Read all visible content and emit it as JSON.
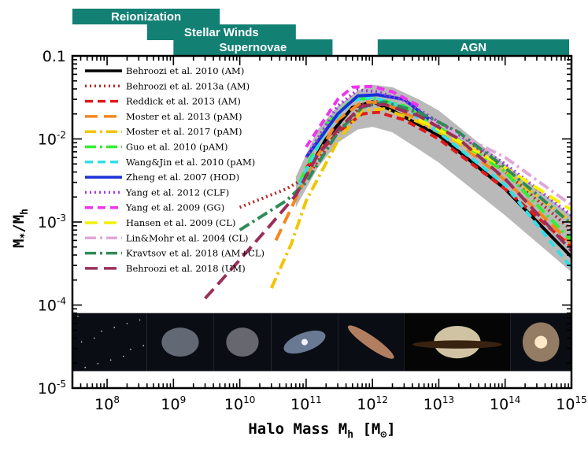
{
  "chart_data": {
    "type": "line",
    "title": "",
    "xlabel": "Halo Mass M_h [M_⊙]",
    "xlabel_parts": {
      "main": "Halo Mass M",
      "sub": "h",
      "bracket_open": " [M",
      "sun": "⊙",
      "bracket_close": "]"
    },
    "ylabel": "M_*/M_h",
    "ylabel_parts": {
      "m1": "M",
      "sub1": "*",
      "slash": "/M",
      "sub2": "h"
    },
    "x_scale": "log",
    "y_scale": "log",
    "xlim": [
      30000000.0,
      1000000000000000.0
    ],
    "ylim": [
      1e-05,
      0.1
    ],
    "x_ticks": [
      {
        "value": 100000000.0,
        "base": "10",
        "exp": "8"
      },
      {
        "value": 1000000000.0,
        "base": "10",
        "exp": "9"
      },
      {
        "value": 10000000000.0,
        "base": "10",
        "exp": "10"
      },
      {
        "value": 100000000000.0,
        "base": "10",
        "exp": "11"
      },
      {
        "value": 1000000000000.0,
        "base": "10",
        "exp": "12"
      },
      {
        "value": 10000000000000.0,
        "base": "10",
        "exp": "13"
      },
      {
        "value": 100000000000000.0,
        "base": "10",
        "exp": "14"
      },
      {
        "value": 1000000000000000.0,
        "base": "10",
        "exp": "15"
      }
    ],
    "y_ticks": [
      {
        "value": 0.1,
        "text": "0.1"
      },
      {
        "value": 0.01,
        "base": "10",
        "exp": "-2"
      },
      {
        "value": 0.001,
        "base": "10",
        "exp": "-3"
      },
      {
        "value": 0.0001,
        "base": "10",
        "exp": "-4"
      },
      {
        "value": 1e-05,
        "base": "10",
        "exp": "-5"
      }
    ],
    "feedback_bands": [
      {
        "label": "Reionization",
        "x_start": 30000000.0,
        "x_end": 5000000000.0,
        "row": 0
      },
      {
        "label": "Stellar Winds",
        "x_start": 400000000.0,
        "x_end": 70000000000.0,
        "row": 1
      },
      {
        "label": "Supernovae",
        "x_start": 1000000000.0,
        "x_end": 250000000000.0,
        "row": 2
      },
      {
        "label": "AGN",
        "x_start": 1200000000000.0,
        "x_end": 1000000000000000.0,
        "row": 2
      }
    ],
    "band_color": "#138074",
    "scatter_band": {
      "color": "#b9b9b9",
      "x": [
        70000000000.0,
        150000000000.0,
        300000000000.0,
        600000000000.0,
        1000000000000.0,
        2000000000000.0,
        5000000000000.0,
        10000000000000.0,
        100000000000000.0,
        1000000000000000.0
      ],
      "lower": [
        0.0015,
        0.0045,
        0.009,
        0.013,
        0.014,
        0.012,
        0.0075,
        0.0052,
        0.0012,
        0.00025
      ],
      "upper": [
        0.0035,
        0.013,
        0.025,
        0.038,
        0.045,
        0.042,
        0.03,
        0.022,
        0.005,
        0.0012
      ]
    },
    "galaxy_strip": {
      "y_top": 8e-05,
      "y_bottom": 1.6e-05,
      "panels": [
        {
          "x_end": 400000000.0,
          "kind": "starfield",
          "color": "#dde6f5"
        },
        {
          "x_end": 4000000000.0,
          "kind": "dwarf",
          "color": "#cfd8ea"
        },
        {
          "x_end": 30000000000.0,
          "kind": "irregular",
          "color": "#d8d8de"
        },
        {
          "x_end": 300000000000.0,
          "kind": "spiral",
          "color": "#a9c2ea"
        },
        {
          "x_end": 3000000000000.0,
          "kind": "edge-on",
          "color": "#e9a47a"
        },
        {
          "x_end": 120000000000000.0,
          "kind": "sombrero",
          "color": "#f4e5c0"
        },
        {
          "x_end": 1000000000000000.0,
          "kind": "elliptical",
          "color": "#f0c59a"
        }
      ]
    },
    "series": [
      {
        "name": "Behroozi et al. 2010 (AM)",
        "color": "#000000",
        "dash": "solid",
        "x": [
          80000000000.0,
          200000000000.0,
          500000000000.0,
          1000000000000.0,
          2000000000000.0,
          10000000000000.0,
          100000000000000.0,
          1000000000000000.0
        ],
        "y": [
          0.0028,
          0.01,
          0.024,
          0.028,
          0.022,
          0.011,
          0.0025,
          0.00038
        ]
      },
      {
        "name": "Behroozi et al. 2013a (AM)",
        "color": "#b52a2a",
        "dash": "dot",
        "x": [
          10000000000.0,
          50000000000.0,
          100000000000.0,
          300000000000.0,
          700000000000.0,
          1500000000000.0,
          5000000000000.0,
          20000000000000.0,
          100000000000000.0,
          1000000000000000.0
        ],
        "y": [
          0.0015,
          0.0025,
          0.0034,
          0.012,
          0.026,
          0.029,
          0.02,
          0.012,
          0.004,
          0.0008
        ]
      },
      {
        "name": "Reddick et al. 2013 (AM)",
        "color": "#e01b1b",
        "dash": "dash",
        "x": [
          100000000000.0,
          300000000000.0,
          700000000000.0,
          1200000000000.0,
          3000000000000.0,
          10000000000000.0,
          100000000000000.0,
          1000000000000000.0
        ],
        "y": [
          0.0045,
          0.012,
          0.02,
          0.021,
          0.017,
          0.01,
          0.0025,
          0.0005
        ]
      },
      {
        "name": "Moster et al. 2013 (pAM)",
        "color": "#f5871f",
        "dash": "longdash",
        "x": [
          35000000000.0,
          100000000000.0,
          300000000000.0,
          700000000000.0,
          1500000000000.0,
          5000000000000.0,
          20000000000000.0,
          100000000000000.0,
          1000000000000000.0
        ],
        "y": [
          0.0006,
          0.0035,
          0.017,
          0.028,
          0.027,
          0.017,
          0.009,
          0.0032,
          0.00055
        ]
      },
      {
        "name": "Moster et al. 2017 (pAM)",
        "color": "#f2c500",
        "dash": "dashdot",
        "x": [
          30000000000.0,
          60000000000.0,
          100000000000.0,
          300000000000.0,
          700000000000.0,
          1500000000000.0,
          5000000000000.0,
          20000000000000.0,
          100000000000000.0,
          1000000000000000.0
        ],
        "y": [
          0.00016,
          0.00055,
          0.0018,
          0.0095,
          0.022,
          0.023,
          0.016,
          0.009,
          0.004,
          0.001
        ]
      },
      {
        "name": "Guo et al. 2010 (pAM)",
        "color": "#33ee33",
        "dash": "dashdot",
        "x": [
          80000000000.0,
          200000000000.0,
          500000000000.0,
          1000000000000.0,
          3000000000000.0,
          10000000000000.0,
          100000000000000.0,
          1000000000000000.0
        ],
        "y": [
          0.003,
          0.015,
          0.03,
          0.031,
          0.025,
          0.014,
          0.004,
          0.0006
        ]
      },
      {
        "name": "Wang&Jin et al. 2010 (pAM)",
        "color": "#2de0e6",
        "dash": "dash",
        "x": [
          80000000000.0,
          200000000000.0,
          500000000000.0,
          1000000000000.0,
          3000000000000.0,
          10000000000000.0,
          100000000000000.0,
          1000000000000000.0
        ],
        "y": [
          0.0028,
          0.013,
          0.029,
          0.032,
          0.024,
          0.012,
          0.0028,
          0.00028
        ]
      },
      {
        "name": "Zheng et al. 2007 (HOD)",
        "color": "#1a2fd6",
        "dash": "solid",
        "x": [
          100000000000.0,
          300000000000.0,
          600000000000.0,
          1200000000000.0,
          3000000000000.0,
          10000000000000.0
        ],
        "y": [
          0.006,
          0.02,
          0.033,
          0.034,
          0.03,
          0.014
        ]
      },
      {
        "name": "Yang et al. 2012 (CLF)",
        "color": "#a238e6",
        "dash": "dot",
        "x": [
          100000000000.0,
          300000000000.0,
          600000000000.0,
          1200000000000.0,
          3000000000000.0,
          10000000000000.0,
          100000000000000.0,
          1000000000000000.0
        ],
        "y": [
          0.006,
          0.025,
          0.039,
          0.037,
          0.029,
          0.016,
          0.005,
          0.0012
        ]
      },
      {
        "name": "Yang et al. 2009 (GG)",
        "color": "#f033ee",
        "dash": "dash",
        "x": [
          100000000000.0,
          300000000000.0,
          500000000000.0,
          1000000000000.0,
          2000000000000.0,
          5000000000000.0
        ],
        "y": [
          0.008,
          0.03,
          0.042,
          0.043,
          0.037,
          0.025
        ]
      },
      {
        "name": "Hansen et al. 2009 (CL)",
        "color": "#f4f000",
        "dash": "longdash",
        "x": [
          5000000000000.0,
          10000000000000.0,
          100000000000000.0,
          1000000000000000.0
        ],
        "y": [
          0.017,
          0.013,
          0.0045,
          0.0014
        ]
      },
      {
        "name": "Lin&Mohr et al. 2004 (CL)",
        "color": "#e1a7d8",
        "dash": "dashdot",
        "x": [
          7000000000000.0,
          10000000000000.0,
          100000000000000.0,
          1000000000000000.0
        ],
        "y": [
          0.017,
          0.015,
          0.006,
          0.0016
        ]
      },
      {
        "name": "Kravtsov et al. 2018 (AM+CL)",
        "color": "#2e8b57",
        "dash": "dashdot",
        "x": [
          10000000000.0,
          50000000000.0,
          100000000000.0,
          300000000000.0,
          700000000000.0,
          1500000000000.0,
          5000000000000.0,
          20000000000000.0,
          100000000000000.0,
          1000000000000000.0
        ],
        "y": [
          0.0008,
          0.0018,
          0.003,
          0.012,
          0.024,
          0.028,
          0.021,
          0.012,
          0.0045,
          0.00095
        ]
      },
      {
        "name": "Behroozi et al. 2018 (UM)",
        "color": "#9b2e5a",
        "dash": "longdash",
        "x": [
          3000000000.0,
          10000000000.0,
          30000000000.0,
          70000000000.0,
          150000000000.0,
          300000000000.0,
          700000000000.0,
          1500000000000.0,
          5000000000000.0,
          20000000000000.0,
          100000000000000.0,
          1000000000000000.0
        ],
        "y": [
          0.00012,
          0.00035,
          0.00095,
          0.0021,
          0.0065,
          0.013,
          0.025,
          0.026,
          0.019,
          0.01,
          0.0033,
          0.00045
        ]
      }
    ]
  }
}
